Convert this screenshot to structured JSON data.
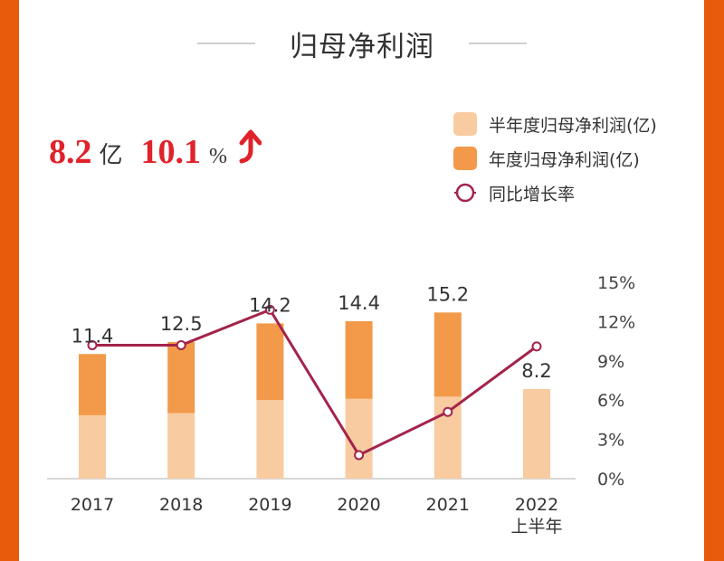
{
  "header": {
    "title": "归母净利润"
  },
  "kpi": {
    "profit_value": "8.2",
    "profit_unit": "亿",
    "growth_value": "10.1",
    "growth_unit": "%",
    "trend_icon": "arrow-up-icon"
  },
  "colors": {
    "border": "#E85A0C",
    "half_year_bar": "#F8CBA0",
    "annual_bar": "#F29A4A",
    "growth_line": "#A3244A",
    "kpi_red": "#E0222B"
  },
  "legend": [
    {
      "label": "半年度归母净利润(亿)",
      "type": "swatch",
      "series": "half_year"
    },
    {
      "label": "年度归母净利润(亿)",
      "type": "swatch",
      "series": "annual"
    },
    {
      "label": "同比增长率",
      "type": "line-marker",
      "series": "growth"
    }
  ],
  "chart_data": {
    "type": "bar",
    "title": "归母净利润",
    "categories": [
      "2017",
      "2018",
      "2019",
      "2020",
      "2021",
      "2022\n上半年"
    ],
    "category_lines": [
      [
        "2017"
      ],
      [
        "2018"
      ],
      [
        "2019"
      ],
      [
        "2020"
      ],
      [
        "2021"
      ],
      [
        "2022",
        "上半年"
      ]
    ],
    "series": [
      {
        "name": "半年度归母净利润(亿)",
        "kind": "bar-stack-base",
        "values": [
          5.8,
          6.0,
          7.2,
          7.3,
          7.5,
          8.2
        ]
      },
      {
        "name": "年度归母净利润(亿)",
        "kind": "bar-total",
        "values": [
          11.4,
          12.5,
          14.2,
          14.4,
          15.2,
          null
        ]
      },
      {
        "name": "同比增长率",
        "kind": "line",
        "axis": "right",
        "values": [
          10.2,
          10.2,
          12.9,
          1.8,
          5.1,
          10.1
        ],
        "unit": "%"
      }
    ],
    "data_labels": [
      "11.4",
      "12.5",
      "14.2",
      "14.4",
      "15.2",
      "8.2"
    ],
    "left_axis": {
      "visible": false,
      "ylim": [
        0,
        18
      ]
    },
    "right_axis": {
      "visible": true,
      "ylim": [
        0,
        15
      ],
      "ticks": [
        0,
        3,
        6,
        9,
        12,
        15
      ],
      "tick_labels": [
        "0%",
        "3%",
        "6%",
        "9%",
        "12%",
        "15%"
      ]
    },
    "xlabel": "",
    "ylabel": "",
    "grid": false,
    "legend_position": "top-right"
  }
}
